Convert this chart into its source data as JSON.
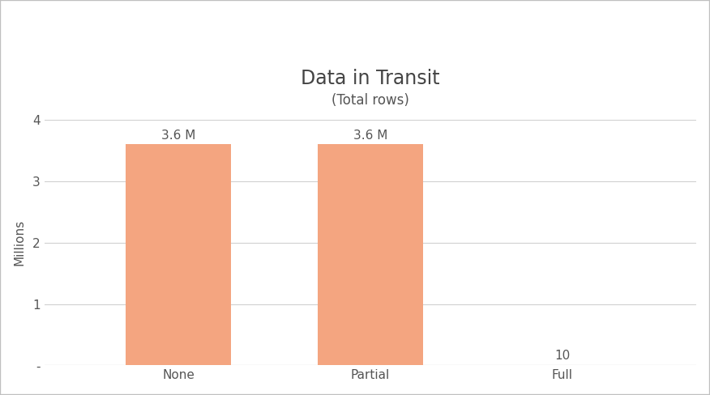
{
  "title": "Data in Transit",
  "subtitle": "(Total rows)",
  "categories": [
    "None",
    "Partial",
    "Full"
  ],
  "values": [
    3600000,
    3600000,
    10
  ],
  "bar_labels": [
    "3.6 M",
    "3.6 M",
    "10"
  ],
  "bar_color": "#F4A580",
  "ylabel": "Millions",
  "ylim": [
    0,
    4000000
  ],
  "yticks": [
    0,
    1000000,
    2000000,
    3000000,
    4000000
  ],
  "ytick_labels": [
    "-",
    "1",
    "2",
    "3",
    "4"
  ],
  "background_color": "#ffffff",
  "plot_bg_color": "#ffffff",
  "grid_color": "#d0d0d0",
  "title_fontsize": 17,
  "subtitle_fontsize": 12,
  "label_fontsize": 11,
  "tick_fontsize": 11,
  "bar_label_fontsize": 11,
  "border_color": "#c0c0c0",
  "bar_width": 0.55
}
